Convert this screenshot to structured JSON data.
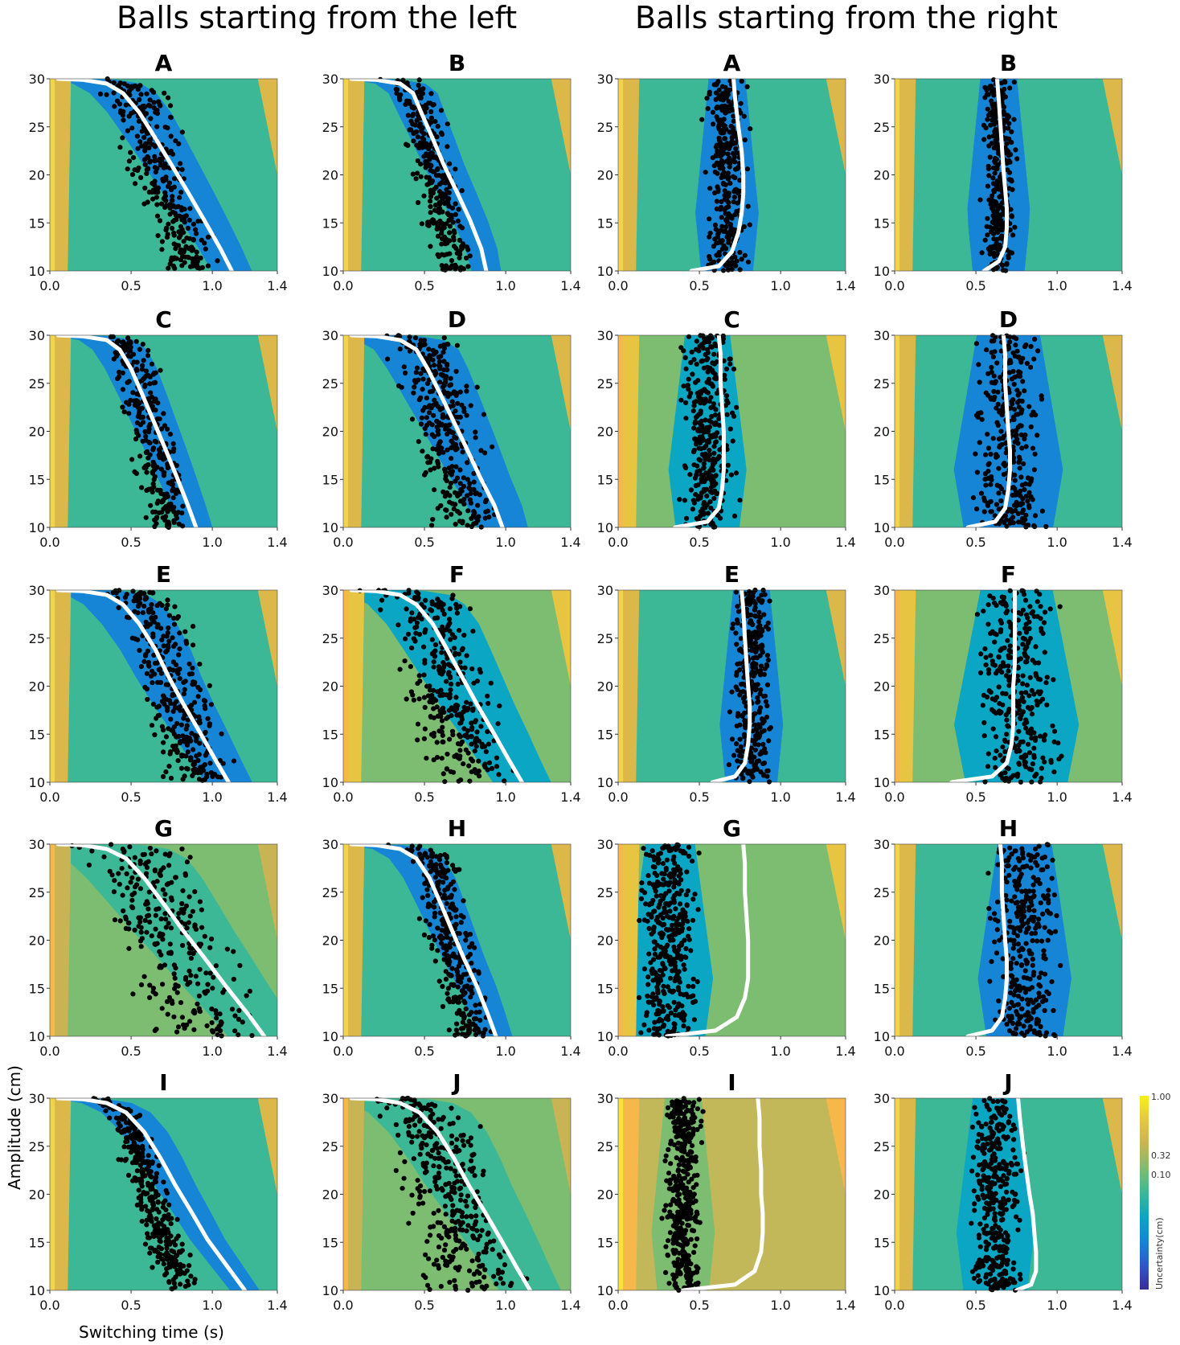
{
  "header": {
    "left_title": "Balls starting from the left",
    "right_title": "Balls starting from the right"
  },
  "axes": {
    "ylabel": "Amplitude (cm)",
    "xlabel": "Switching time (s)",
    "x_ticks": [
      "0.0",
      "0.5",
      "1.0",
      "1.4"
    ],
    "x_ticks_shifted": [
      "0.0",
      "0.5",
      "1.0",
      "1.4"
    ],
    "y_ticks": [
      "10",
      "15",
      "20",
      "25",
      "30"
    ],
    "xlim": [
      0,
      1.4
    ],
    "ylim": [
      10,
      30
    ]
  },
  "colorbar": {
    "label": "Uncertainty(cm)",
    "ticks": [
      "1.00",
      "0.32",
      "0.10"
    ],
    "gradient": [
      "#f9f01a",
      "#e7c543",
      "#c8b454",
      "#7fbd6f",
      "#3db896",
      "#0aa6c3",
      "#1685d6",
      "#2f57c9",
      "#3a2c9a"
    ]
  },
  "chart_data": [
    {
      "group": "left",
      "panel": "A",
      "type": "scatter",
      "colors": {
        "background": "#3cb896",
        "band": "#1685d6",
        "edge": "#dcb84a",
        "near": "#f2d44a"
      },
      "curve": {
        "x": [
          0.05,
          0.2,
          0.35,
          0.45,
          0.55,
          0.65,
          0.75,
          0.85,
          0.95,
          1.05,
          1.12
        ],
        "y": [
          30,
          29.9,
          29.5,
          28.5,
          26.5,
          23.8,
          21,
          18.2,
          15.3,
          12.3,
          10
        ]
      },
      "points": {
        "center": 0.68,
        "spread": 0.11,
        "count": 330
      }
    },
    {
      "group": "left",
      "panel": "B",
      "type": "scatter",
      "colors": {
        "background": "#3cb896",
        "band": "#1685d6",
        "edge": "#dcb84a",
        "near": "#f2d44a"
      },
      "curve": {
        "x": [
          0.05,
          0.2,
          0.35,
          0.43,
          0.48,
          0.55,
          0.62,
          0.7,
          0.78,
          0.85,
          0.88
        ],
        "y": [
          30,
          29.9,
          29.5,
          28.5,
          26.5,
          23.8,
          21,
          18.2,
          15.3,
          12.3,
          10
        ]
      },
      "points": {
        "center": 0.58,
        "spread": 0.08,
        "count": 330
      }
    },
    {
      "group": "right",
      "panel": "A",
      "type": "scatter",
      "colors": {
        "background": "#3cb896",
        "band": "#1685d6",
        "edge": "#dcb84a",
        "near": "#f2d44a"
      },
      "curve": {
        "x": [
          0.45,
          0.62,
          0.7,
          0.74,
          0.76,
          0.77,
          0.77,
          0.76,
          0.74,
          0.72,
          0.71
        ],
        "y": [
          10,
          10.5,
          12,
          14,
          16,
          18,
          20,
          22.5,
          25,
          28,
          30
        ]
      },
      "points": {
        "center": 0.67,
        "spread": 0.08,
        "count": 330
      }
    },
    {
      "group": "right",
      "panel": "B",
      "type": "scatter",
      "colors": {
        "background": "#3cb896",
        "band": "#1685d6",
        "edge": "#dcb84a",
        "near": "#f2d44a"
      },
      "curve": {
        "x": [
          0.55,
          0.64,
          0.68,
          0.69,
          0.69,
          0.68,
          0.67,
          0.66,
          0.65,
          0.64,
          0.63
        ],
        "y": [
          10,
          11,
          12.5,
          14.5,
          16.5,
          18.5,
          20.5,
          23,
          25.5,
          28,
          30
        ]
      },
      "points": {
        "center": 0.64,
        "spread": 0.06,
        "count": 330
      }
    },
    {
      "group": "left",
      "panel": "C",
      "type": "scatter",
      "colors": {
        "background": "#3cb896",
        "band": "#1685d6",
        "edge": "#dcb84a",
        "near": "#f2d44a"
      },
      "curve": {
        "x": [
          0.05,
          0.2,
          0.35,
          0.43,
          0.5,
          0.57,
          0.64,
          0.71,
          0.78,
          0.85,
          0.9
        ],
        "y": [
          30,
          29.9,
          29.5,
          28.5,
          26.5,
          23.8,
          21,
          18.2,
          15.3,
          12.3,
          10
        ]
      },
      "points": {
        "center": 0.68,
        "spread": 0.09,
        "count": 300
      }
    },
    {
      "group": "left",
      "panel": "D",
      "type": "scatter",
      "colors": {
        "background": "#3cb896",
        "band": "#1685d6",
        "edge": "#dcb84a",
        "near": "#f2d44a"
      },
      "curve": {
        "x": [
          0.05,
          0.2,
          0.35,
          0.45,
          0.52,
          0.6,
          0.68,
          0.76,
          0.84,
          0.93,
          0.98
        ],
        "y": [
          30,
          29.9,
          29.5,
          28.5,
          26.5,
          23.8,
          21,
          18.2,
          15.3,
          12.3,
          10
        ]
      },
      "points": {
        "center": 0.68,
        "spread": 0.14,
        "count": 330
      }
    },
    {
      "group": "right",
      "panel": "C",
      "type": "scatter",
      "colors": {
        "background": "#7dbd72",
        "band": "#0aa6c3",
        "edge": "#e7c543",
        "near": "#f6b84a"
      },
      "curve": {
        "x": [
          0.35,
          0.55,
          0.62,
          0.64,
          0.65,
          0.65,
          0.65,
          0.64,
          0.63,
          0.63,
          0.62
        ],
        "y": [
          10,
          10.6,
          12,
          14,
          16,
          18,
          20,
          22.5,
          25,
          28,
          30
        ]
      },
      "points": {
        "center": 0.55,
        "spread": 0.1,
        "count": 330
      }
    },
    {
      "group": "right",
      "panel": "D",
      "type": "scatter",
      "colors": {
        "background": "#3cb896",
        "band": "#1685d6",
        "edge": "#dcb84a",
        "near": "#f2d44a"
      },
      "curve": {
        "x": [
          0.45,
          0.62,
          0.68,
          0.7,
          0.71,
          0.71,
          0.7,
          0.69,
          0.68,
          0.68,
          0.67
        ],
        "y": [
          10,
          10.6,
          12,
          14,
          16,
          18,
          20,
          22.5,
          25,
          28,
          30
        ]
      },
      "points": {
        "center": 0.7,
        "spread": 0.14,
        "count": 330
      }
    },
    {
      "group": "left",
      "panel": "E",
      "type": "scatter",
      "colors": {
        "background": "#3cb896",
        "band": "#1685d6",
        "edge": "#dcb84a",
        "near": "#f2d44a"
      },
      "curve": {
        "x": [
          0.05,
          0.2,
          0.35,
          0.45,
          0.55,
          0.65,
          0.73,
          0.82,
          0.92,
          1.02,
          1.1
        ],
        "y": [
          30,
          29.9,
          29.5,
          28.5,
          26.5,
          23.8,
          21,
          18.2,
          15.3,
          12.3,
          10
        ]
      },
      "points": {
        "center": 0.85,
        "spread": 0.13,
        "count": 330
      }
    },
    {
      "group": "left",
      "panel": "F",
      "type": "scatter",
      "colors": {
        "background": "#7dbd72",
        "band": "#0aa6c3",
        "edge": "#e7c543",
        "near": "#f6b84a"
      },
      "curve": {
        "x": [
          0.05,
          0.2,
          0.35,
          0.45,
          0.55,
          0.64,
          0.73,
          0.82,
          0.92,
          1.02,
          1.1
        ],
        "y": [
          30,
          29.9,
          29.5,
          28.5,
          26.5,
          23.8,
          21,
          18.2,
          15.3,
          12.3,
          10
        ]
      },
      "points": {
        "center": 0.63,
        "spread": 0.16,
        "count": 330
      }
    },
    {
      "group": "right",
      "panel": "E",
      "type": "scatter",
      "colors": {
        "background": "#3cb896",
        "band": "#1685d6",
        "edge": "#dcb84a",
        "near": "#f2d44a"
      },
      "curve": {
        "x": [
          0.58,
          0.72,
          0.78,
          0.8,
          0.81,
          0.81,
          0.8,
          0.79,
          0.78,
          0.77,
          0.76
        ],
        "y": [
          10,
          10.6,
          12,
          14,
          16,
          18,
          20,
          22.5,
          25,
          28,
          30
        ]
      },
      "points": {
        "center": 0.82,
        "spread": 0.07,
        "count": 330
      }
    },
    {
      "group": "right",
      "panel": "F",
      "type": "scatter",
      "colors": {
        "background": "#7dbd72",
        "band": "#0aa6c3",
        "edge": "#e7c543",
        "near": "#f6b84a"
      },
      "curve": {
        "x": [
          0.35,
          0.6,
          0.69,
          0.72,
          0.73,
          0.73,
          0.73,
          0.74,
          0.74,
          0.74,
          0.74
        ],
        "y": [
          10,
          10.6,
          12,
          14,
          16,
          18,
          20,
          22.5,
          25,
          28,
          30
        ]
      },
      "points": {
        "center": 0.75,
        "spread": 0.16,
        "count": 330
      }
    },
    {
      "group": "left",
      "panel": "G",
      "type": "scatter",
      "colors": {
        "background": "#7dbd72",
        "band": "#3cb896",
        "edge": "#c8b454",
        "near": "#f6b84a"
      },
      "curve": {
        "x": [
          0.05,
          0.2,
          0.35,
          0.47,
          0.58,
          0.7,
          0.82,
          0.95,
          1.08,
          1.22,
          1.32
        ],
        "y": [
          30,
          29.9,
          29.5,
          28.5,
          26.5,
          23.8,
          21,
          18.2,
          15.3,
          12.3,
          10
        ]
      },
      "points": {
        "center": 0.75,
        "spread": 0.2,
        "count": 280
      }
    },
    {
      "group": "left",
      "panel": "H",
      "type": "scatter",
      "colors": {
        "background": "#3cb896",
        "band": "#1685d6",
        "edge": "#dcb84a",
        "near": "#f2d44a"
      },
      "curve": {
        "x": [
          0.05,
          0.2,
          0.35,
          0.45,
          0.53,
          0.6,
          0.67,
          0.74,
          0.82,
          0.89,
          0.94
        ],
        "y": [
          30,
          29.9,
          29.5,
          28.5,
          26.5,
          23.8,
          21,
          18.2,
          15.3,
          12.3,
          10
        ]
      },
      "points": {
        "center": 0.72,
        "spread": 0.09,
        "count": 330
      }
    },
    {
      "group": "right",
      "panel": "G",
      "type": "scatter",
      "colors": {
        "background": "#7dbd72",
        "band": "#0aa6c3",
        "edge": "#e7c543",
        "near": "#f6b84a"
      },
      "curve": {
        "x": [
          0.3,
          0.6,
          0.73,
          0.78,
          0.8,
          0.8,
          0.8,
          0.79,
          0.78,
          0.78,
          0.77
        ],
        "y": [
          10,
          10.6,
          12,
          14,
          16,
          18,
          20,
          22.5,
          25,
          28,
          30
        ]
      },
      "points": {
        "center": 0.32,
        "spread": 0.11,
        "count": 400
      }
    },
    {
      "group": "right",
      "panel": "H",
      "type": "scatter",
      "colors": {
        "background": "#3cb896",
        "band": "#1685d6",
        "edge": "#dcb84a",
        "near": "#f2d44a"
      },
      "curve": {
        "x": [
          0.45,
          0.6,
          0.66,
          0.68,
          0.69,
          0.69,
          0.68,
          0.67,
          0.66,
          0.66,
          0.65
        ],
        "y": [
          10,
          10.6,
          12,
          14,
          16,
          18,
          20,
          22.5,
          25,
          28,
          30
        ]
      },
      "points": {
        "center": 0.8,
        "spread": 0.12,
        "count": 330
      }
    },
    {
      "group": "left",
      "panel": "I",
      "type": "scatter",
      "colors": {
        "background": "#3cb896",
        "band": "#1685d6",
        "edge": "#dcb84a",
        "near": "#f2d44a"
      },
      "curve": {
        "x": [
          0.05,
          0.2,
          0.35,
          0.47,
          0.58,
          0.68,
          0.77,
          0.87,
          0.97,
          1.1,
          1.2
        ],
        "y": [
          30,
          29.9,
          29.5,
          28.5,
          26.5,
          23.8,
          21,
          18.2,
          15.3,
          12.3,
          10
        ]
      },
      "points": {
        "center": 0.52,
        "spread": 0.07,
        "count": 360
      }
    },
    {
      "group": "left",
      "panel": "J",
      "type": "scatter",
      "colors": {
        "background": "#7dbd72",
        "band": "#3cb896",
        "edge": "#c8b454",
        "near": "#f6b84a"
      },
      "curve": {
        "x": [
          0.05,
          0.2,
          0.35,
          0.47,
          0.58,
          0.68,
          0.77,
          0.87,
          0.97,
          1.07,
          1.15
        ],
        "y": [
          30,
          29.9,
          29.5,
          28.5,
          26.5,
          23.8,
          21,
          18.2,
          15.3,
          12.3,
          10
        ]
      },
      "points": {
        "center": 0.6,
        "spread": 0.17,
        "count": 360
      }
    },
    {
      "group": "right",
      "panel": "I",
      "type": "scatter",
      "colors": {
        "background": "#c2b859",
        "band": "#7dbd72",
        "edge": "#f6b84a",
        "near": "#f9e23a"
      },
      "curve": {
        "x": [
          0.4,
          0.72,
          0.84,
          0.88,
          0.89,
          0.89,
          0.88,
          0.88,
          0.87,
          0.87,
          0.86
        ],
        "y": [
          10,
          10.6,
          12,
          14,
          16,
          18,
          20,
          22.5,
          25,
          28,
          30
        ]
      },
      "points": {
        "center": 0.4,
        "spread": 0.07,
        "count": 400
      }
    },
    {
      "group": "right",
      "panel": "J",
      "type": "scatter",
      "colors": {
        "background": "#3cb896",
        "band": "#0aa6c3",
        "edge": "#dcb84a",
        "near": "#f2d44a"
      },
      "curve": {
        "x": [
          0.75,
          0.84,
          0.87,
          0.87,
          0.86,
          0.85,
          0.83,
          0.81,
          0.79,
          0.77,
          0.76
        ],
        "y": [
          10,
          10.6,
          12,
          14,
          16,
          18,
          20,
          22.5,
          25,
          28,
          30
        ]
      },
      "points": {
        "center": 0.62,
        "spread": 0.1,
        "count": 360
      }
    }
  ]
}
